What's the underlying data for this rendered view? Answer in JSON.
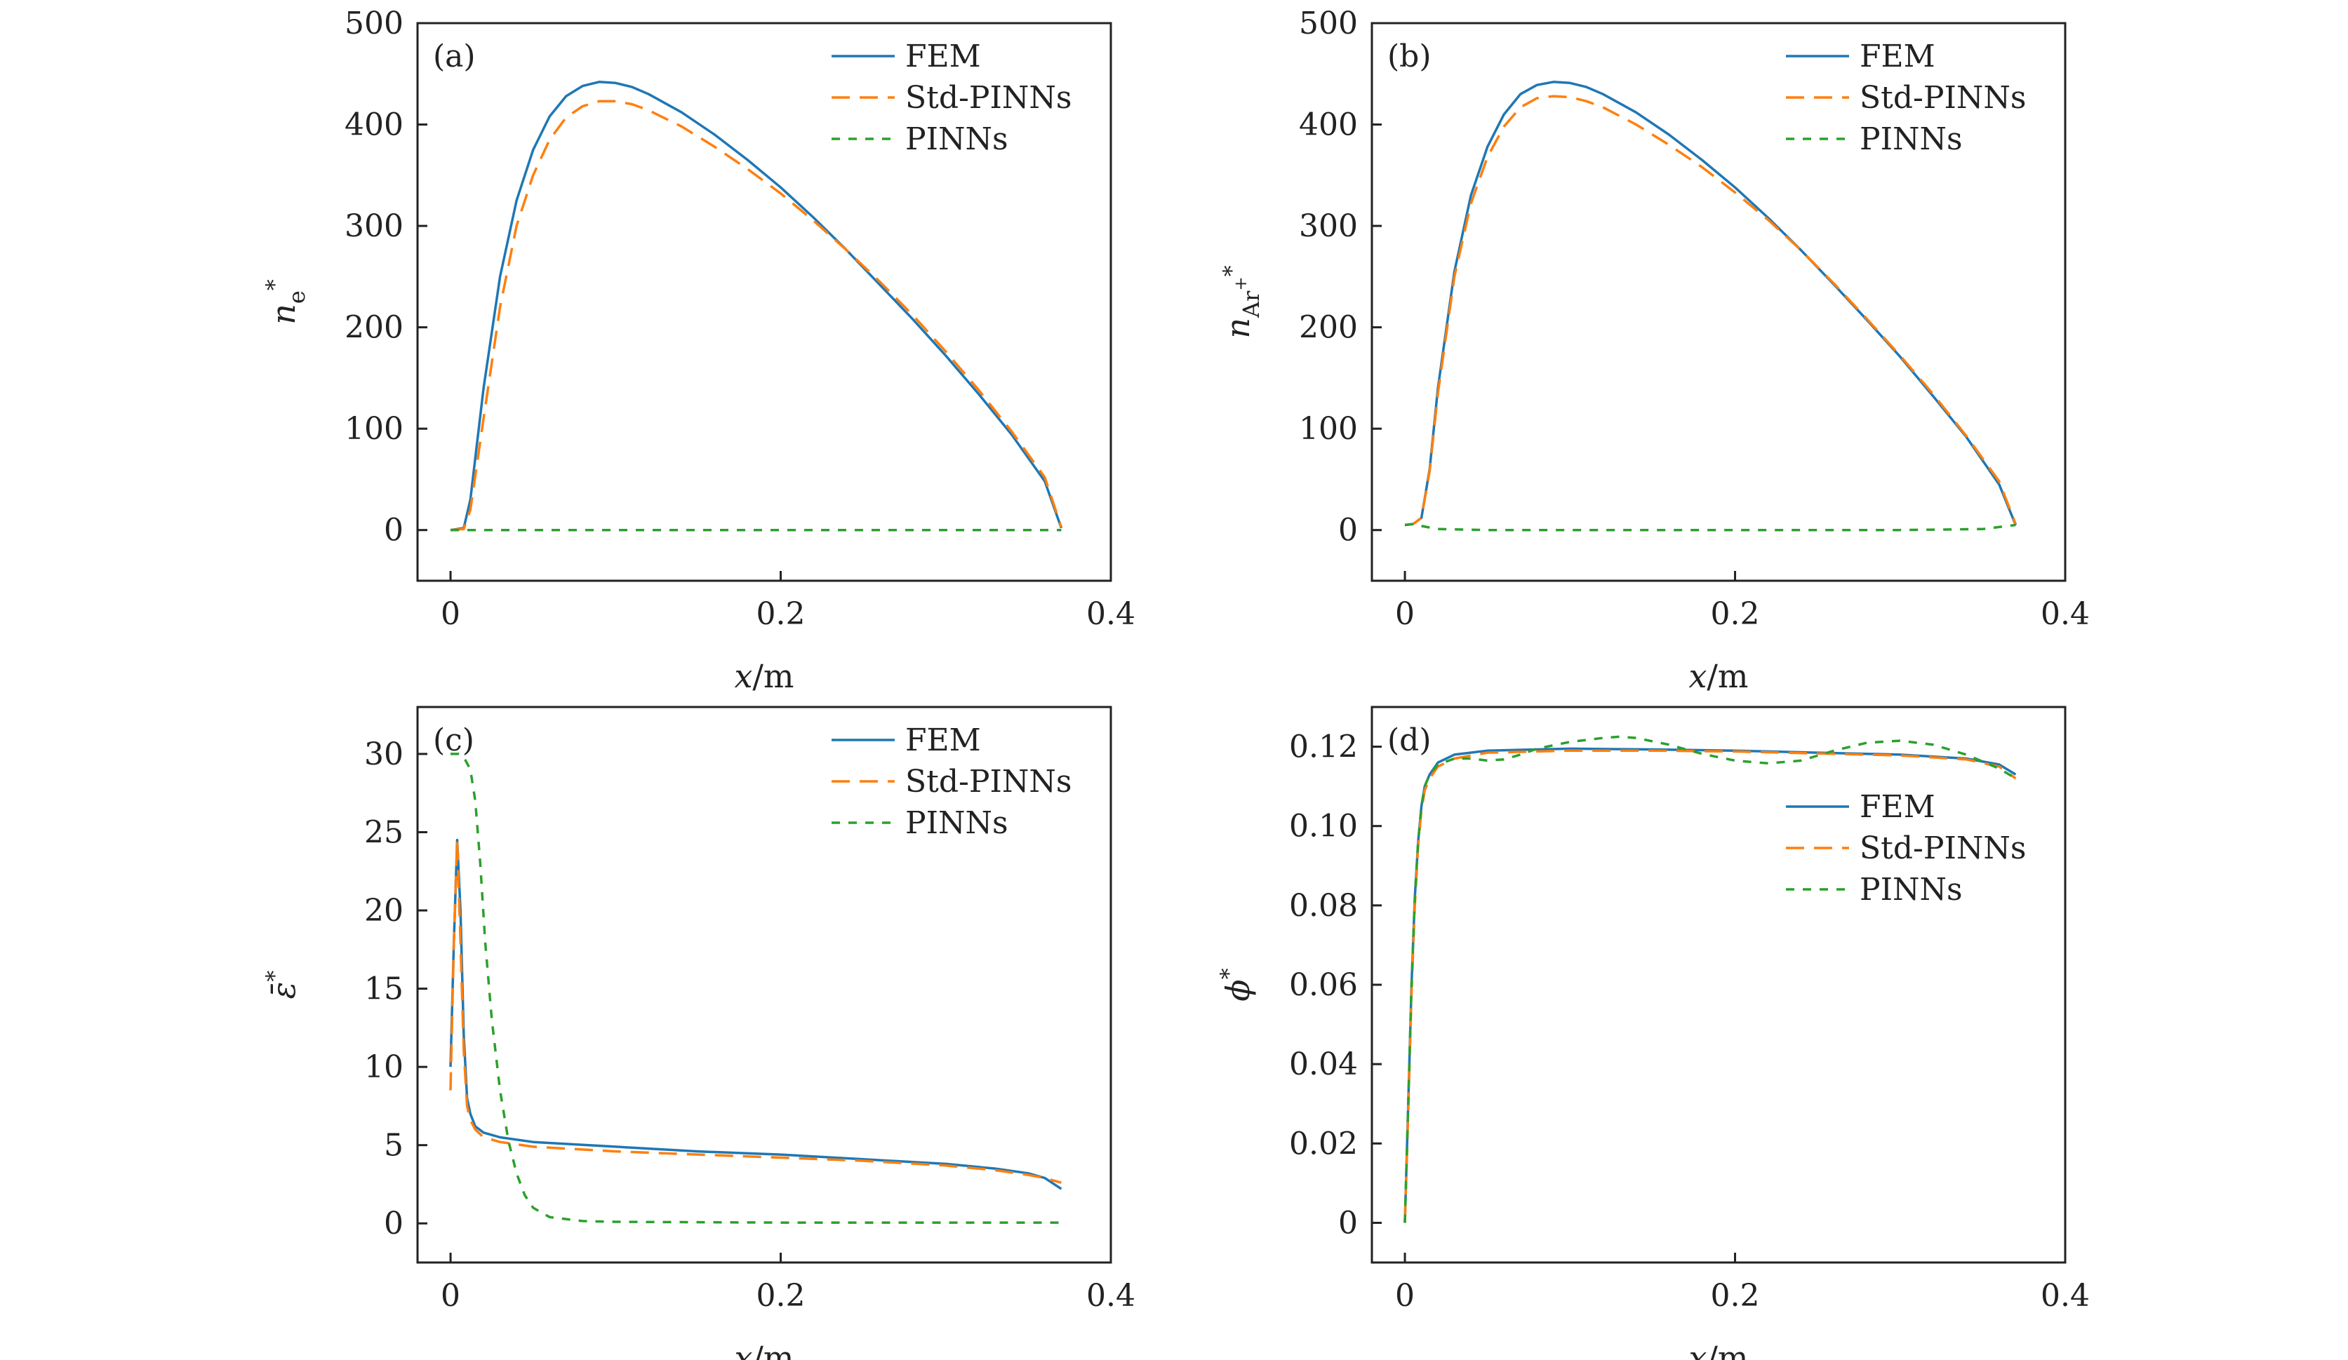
{
  "figure": {
    "xlabel_var": "x",
    "xlabel_unit": "/m",
    "colors": {
      "FEM": "#1f77b4",
      "Std-PINNs": "#ff7f0e",
      "PINNs": "#2ca02c",
      "axis": "#222222"
    }
  },
  "chart_data": [
    {
      "id": "a",
      "type": "line",
      "panel_label": "(a)",
      "ylabel": {
        "base": "n",
        "sup": "*",
        "sub": "e"
      },
      "xlim": [
        -0.02,
        0.4
      ],
      "ylim": [
        -50,
        500
      ],
      "xticks": [
        0,
        0.2,
        0.4
      ],
      "xtick_labels": [
        "0",
        "0.2",
        "0.4"
      ],
      "yticks": [
        0,
        100,
        200,
        300,
        400,
        500
      ],
      "ytick_labels": [
        "0",
        "100",
        "200",
        "300",
        "400",
        "500"
      ],
      "legend": {
        "position": "top-right",
        "entries": [
          "FEM",
          "Std-PINNs",
          "PINNs"
        ]
      },
      "series": [
        {
          "name": "FEM",
          "style": "solid",
          "x": [
            0,
            0.008,
            0.012,
            0.02,
            0.03,
            0.04,
            0.05,
            0.06,
            0.07,
            0.08,
            0.09,
            0.1,
            0.11,
            0.12,
            0.14,
            0.16,
            0.18,
            0.2,
            0.22,
            0.24,
            0.26,
            0.28,
            0.3,
            0.32,
            0.34,
            0.36,
            0.37
          ],
          "y": [
            0,
            2,
            30,
            140,
            250,
            325,
            375,
            408,
            428,
            438,
            442,
            441,
            437,
            430,
            412,
            390,
            365,
            338,
            308,
            276,
            242,
            208,
            172,
            134,
            94,
            48,
            2
          ]
        },
        {
          "name": "Std-PINNs",
          "style": "dashed",
          "x": [
            0,
            0.008,
            0.012,
            0.02,
            0.03,
            0.04,
            0.05,
            0.06,
            0.07,
            0.08,
            0.09,
            0.1,
            0.11,
            0.12,
            0.14,
            0.16,
            0.18,
            0.2,
            0.22,
            0.24,
            0.26,
            0.28,
            0.3,
            0.32,
            0.34,
            0.36,
            0.37
          ],
          "y": [
            0,
            1,
            20,
            110,
            220,
            300,
            350,
            385,
            407,
            418,
            423,
            423,
            420,
            414,
            398,
            378,
            356,
            332,
            305,
            276,
            245,
            212,
            176,
            138,
            97,
            52,
            3
          ]
        },
        {
          "name": "PINNs",
          "style": "dotted",
          "x": [
            0,
            0.05,
            0.1,
            0.15,
            0.2,
            0.25,
            0.3,
            0.35,
            0.37
          ],
          "y": [
            0,
            0,
            0,
            0,
            0,
            0,
            0,
            0,
            0
          ]
        }
      ]
    },
    {
      "id": "b",
      "type": "line",
      "panel_label": "(b)",
      "ylabel": {
        "base": "n",
        "sup": "*",
        "sub": "Ar",
        "subsup": "+"
      },
      "xlim": [
        -0.02,
        0.4
      ],
      "ylim": [
        -50,
        500
      ],
      "xticks": [
        0,
        0.2,
        0.4
      ],
      "xtick_labels": [
        "0",
        "0.2",
        "0.4"
      ],
      "yticks": [
        0,
        100,
        200,
        300,
        400,
        500
      ],
      "ytick_labels": [
        "0",
        "100",
        "200",
        "300",
        "400",
        "500"
      ],
      "legend": {
        "position": "top-right",
        "entries": [
          "FEM",
          "Std-PINNs",
          "PINNs"
        ]
      },
      "series": [
        {
          "name": "FEM",
          "style": "solid",
          "x": [
            0,
            0.005,
            0.01,
            0.015,
            0.02,
            0.03,
            0.04,
            0.05,
            0.06,
            0.07,
            0.08,
            0.09,
            0.1,
            0.11,
            0.12,
            0.14,
            0.16,
            0.18,
            0.2,
            0.22,
            0.24,
            0.26,
            0.28,
            0.3,
            0.32,
            0.34,
            0.36,
            0.37
          ],
          "y": [
            5,
            6,
            12,
            60,
            140,
            255,
            330,
            378,
            410,
            430,
            439,
            442,
            441,
            437,
            430,
            412,
            390,
            365,
            338,
            308,
            276,
            242,
            207,
            171,
            132,
            92,
            45,
            5
          ]
        },
        {
          "name": "Std-PINNs",
          "style": "dashed",
          "x": [
            0,
            0.005,
            0.01,
            0.015,
            0.02,
            0.03,
            0.04,
            0.05,
            0.06,
            0.07,
            0.08,
            0.09,
            0.1,
            0.11,
            0.12,
            0.14,
            0.16,
            0.18,
            0.2,
            0.22,
            0.24,
            0.26,
            0.28,
            0.3,
            0.32,
            0.34,
            0.36,
            0.37
          ],
          "y": [
            5,
            6,
            12,
            58,
            135,
            250,
            322,
            368,
            398,
            417,
            426,
            428,
            427,
            423,
            417,
            400,
            380,
            358,
            333,
            306,
            276,
            243,
            208,
            172,
            134,
            93,
            48,
            6
          ]
        },
        {
          "name": "PINNs",
          "style": "dotted",
          "x": [
            0,
            0.005,
            0.01,
            0.02,
            0.05,
            0.1,
            0.15,
            0.2,
            0.25,
            0.3,
            0.35,
            0.36,
            0.37
          ],
          "y": [
            5,
            6,
            4,
            1,
            0,
            0,
            0,
            0,
            0,
            0,
            1,
            3,
            5
          ]
        }
      ]
    },
    {
      "id": "c",
      "type": "line",
      "panel_label": "(c)",
      "ylabel": {
        "base": "ε̄",
        "sup": "*"
      },
      "xlim": [
        -0.02,
        0.4
      ],
      "ylim": [
        -2.5,
        33
      ],
      "xticks": [
        0,
        0.2,
        0.4
      ],
      "xtick_labels": [
        "0",
        "0.2",
        "0.4"
      ],
      "yticks": [
        0,
        5,
        10,
        15,
        20,
        25,
        30
      ],
      "ytick_labels": [
        "0",
        "5",
        "10",
        "15",
        "20",
        "25",
        "30"
      ],
      "legend": {
        "position": "top-right",
        "entries": [
          "FEM",
          "Std-PINNs",
          "PINNs"
        ]
      },
      "series": [
        {
          "name": "FEM",
          "style": "solid",
          "x": [
            0,
            0.002,
            0.004,
            0.006,
            0.008,
            0.01,
            0.012,
            0.015,
            0.02,
            0.03,
            0.05,
            0.1,
            0.15,
            0.2,
            0.25,
            0.3,
            0.33,
            0.35,
            0.36,
            0.37
          ],
          "y": [
            10,
            18,
            24.5,
            20,
            12,
            8,
            7,
            6.2,
            5.8,
            5.5,
            5.2,
            4.9,
            4.6,
            4.4,
            4.1,
            3.8,
            3.5,
            3.2,
            2.9,
            2.2
          ]
        },
        {
          "name": "Std-PINNs",
          "style": "dashed",
          "x": [
            0,
            0.002,
            0.004,
            0.006,
            0.008,
            0.01,
            0.012,
            0.015,
            0.02,
            0.03,
            0.05,
            0.1,
            0.15,
            0.2,
            0.25,
            0.3,
            0.33,
            0.35,
            0.36,
            0.37
          ],
          "y": [
            8.5,
            18,
            24.5,
            18,
            11,
            7.5,
            6.6,
            6,
            5.5,
            5.2,
            4.9,
            4.6,
            4.4,
            4.2,
            4,
            3.7,
            3.4,
            3.1,
            2.9,
            2.6
          ]
        },
        {
          "name": "PINNs",
          "style": "dotted",
          "x": [
            0,
            0.005,
            0.008,
            0.012,
            0.015,
            0.018,
            0.021,
            0.025,
            0.03,
            0.035,
            0.04,
            0.045,
            0.05,
            0.06,
            0.08,
            0.1,
            0.2,
            0.3,
            0.37
          ],
          "y": [
            30,
            30,
            29.8,
            29,
            27,
            23,
            18,
            13,
            8.5,
            5.3,
            3.2,
            1.8,
            1,
            0.4,
            0.15,
            0.1,
            0.05,
            0.05,
            0.05
          ]
        }
      ]
    },
    {
      "id": "d",
      "type": "line",
      "panel_label": "(d)",
      "ylabel": {
        "base": "ϕ",
        "sup": "*"
      },
      "xlim": [
        -0.02,
        0.4
      ],
      "ylim": [
        -0.01,
        0.13
      ],
      "xticks": [
        0,
        0.2,
        0.4
      ],
      "xtick_labels": [
        "0",
        "0.2",
        "0.4"
      ],
      "yticks": [
        0,
        0.02,
        0.04,
        0.06,
        0.08,
        0.1,
        0.12
      ],
      "ytick_labels": [
        "0",
        "0.02",
        "0.04",
        "0.06",
        "0.08",
        "0.10",
        "0.12"
      ],
      "legend": {
        "position": "upper-right",
        "entries": [
          "FEM",
          "Std-PINNs",
          "PINNs"
        ]
      },
      "series": [
        {
          "name": "FEM",
          "style": "solid",
          "x": [
            0,
            0.002,
            0.004,
            0.006,
            0.008,
            0.01,
            0.012,
            0.015,
            0.02,
            0.03,
            0.05,
            0.1,
            0.15,
            0.2,
            0.25,
            0.3,
            0.34,
            0.36,
            0.37
          ],
          "y": [
            0,
            0.03,
            0.06,
            0.082,
            0.096,
            0.105,
            0.11,
            0.113,
            0.116,
            0.118,
            0.119,
            0.1195,
            0.1193,
            0.119,
            0.1185,
            0.118,
            0.117,
            0.1155,
            0.113
          ]
        },
        {
          "name": "Std-PINNs",
          "style": "dashed",
          "x": [
            0,
            0.002,
            0.004,
            0.006,
            0.008,
            0.01,
            0.012,
            0.015,
            0.02,
            0.03,
            0.05,
            0.1,
            0.15,
            0.2,
            0.25,
            0.3,
            0.34,
            0.36,
            0.37
          ],
          "y": [
            0,
            0.028,
            0.058,
            0.08,
            0.095,
            0.104,
            0.109,
            0.112,
            0.115,
            0.117,
            0.1185,
            0.119,
            0.119,
            0.1188,
            0.1183,
            0.1178,
            0.1168,
            0.115,
            0.112
          ]
        },
        {
          "name": "PINNs",
          "style": "dotted",
          "x": [
            0,
            0.002,
            0.004,
            0.006,
            0.008,
            0.01,
            0.012,
            0.015,
            0.02,
            0.03,
            0.04,
            0.05,
            0.06,
            0.07,
            0.08,
            0.1,
            0.12,
            0.13,
            0.14,
            0.16,
            0.18,
            0.2,
            0.22,
            0.24,
            0.26,
            0.28,
            0.3,
            0.32,
            0.34,
            0.36,
            0.37
          ],
          "y": [
            0,
            0.03,
            0.06,
            0.082,
            0.096,
            0.105,
            0.11,
            0.113,
            0.1155,
            0.117,
            0.117,
            0.1165,
            0.1168,
            0.118,
            0.1195,
            0.1212,
            0.1222,
            0.1225,
            0.1222,
            0.1205,
            0.1182,
            0.1165,
            0.1158,
            0.1165,
            0.119,
            0.121,
            0.1215,
            0.1205,
            0.118,
            0.1145,
            0.112
          ]
        }
      ]
    }
  ]
}
